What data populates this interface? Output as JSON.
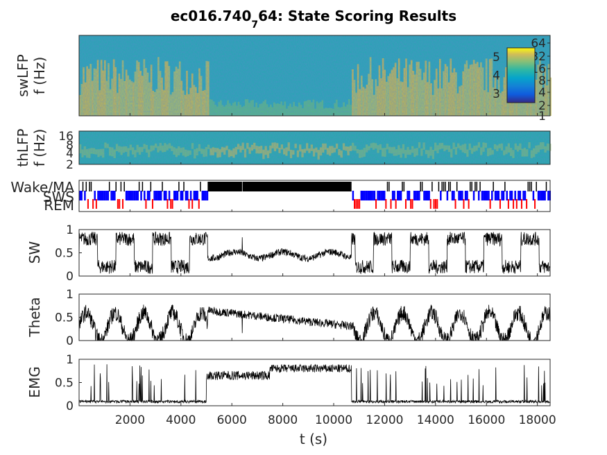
{
  "chart_data": {
    "type": "multi-panel state scoring",
    "title_main": "ec016.740",
    "title_sub": "7",
    "title_rest": "64: State Scoring Results",
    "xlabel": "t (s)",
    "xlim": [
      0,
      18500
    ],
    "xticks": [
      "2000",
      "4000",
      "6000",
      "8000",
      "10000",
      "12000",
      "14000",
      "16000",
      "18000"
    ],
    "xtick_values": [
      2000,
      4000,
      6000,
      8000,
      10000,
      12000,
      14000,
      16000,
      18000
    ],
    "wake_bouts": [
      [
        5050,
        6400
      ],
      [
        6420,
        10700
      ]
    ],
    "panels": {
      "swLFP": {
        "ylabel1": "swLFP",
        "ylabel2": "f (Hz)",
        "yticks": [
          "1",
          "2",
          "4",
          "8",
          "16",
          "32",
          "64"
        ],
        "colorbar_ticks": [
          "3",
          "4",
          "5"
        ],
        "colorbar_range": [
          2.5,
          5.5
        ]
      },
      "thLFP": {
        "ylabel1": "thLFP",
        "ylabel2": "f (Hz)",
        "yticks": [
          "2",
          "4",
          "8",
          "16"
        ]
      },
      "states": {
        "labels": [
          "Wake/MA",
          "SWS",
          "REM"
        ],
        "colors": {
          "wake": "#000000",
          "sws": "#0000ff",
          "rem": "#ff0000"
        }
      },
      "SW": {
        "ylabel": "SW",
        "yticks": [
          "0",
          "0.5",
          "1"
        ],
        "ylim": [
          0,
          1
        ]
      },
      "Theta": {
        "ylabel": "Theta",
        "yticks": [
          "0",
          "0.5",
          "1"
        ],
        "ylim": [
          0,
          1
        ]
      },
      "EMG": {
        "ylabel": "EMG",
        "yticks": [
          "0",
          "0.5",
          "1"
        ],
        "ylim": [
          0,
          1
        ]
      }
    }
  }
}
